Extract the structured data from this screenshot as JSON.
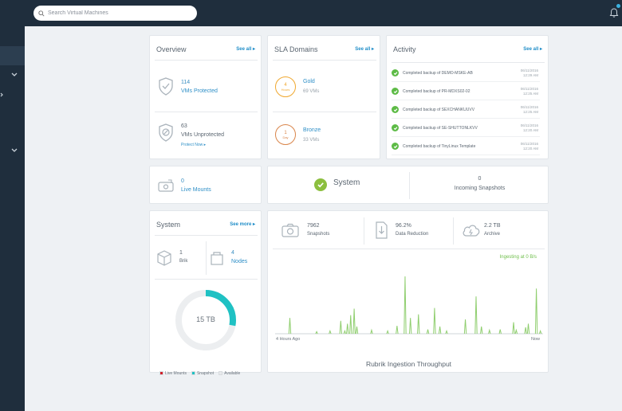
{
  "search": {
    "placeholder": "Search Virtual Machines"
  },
  "overview": {
    "title": "Overview",
    "see_all": "See all",
    "protected_count": "114",
    "protected_label": "VMs Protected",
    "unprotected_count": "63",
    "unprotected_label": "VMs Unprotected",
    "protect_now": "Protect Now"
  },
  "sla": {
    "title": "SLA Domains",
    "see_all": "See all",
    "domains": [
      {
        "badge_num": "4",
        "badge_unit": "Hours",
        "name": "Gold",
        "vms": "69 VMs",
        "color": "#f0a830"
      },
      {
        "badge_num": "1",
        "badge_unit": "Day",
        "name": "Bronze",
        "vms": "33 VMs",
        "color": "#d9854a"
      }
    ]
  },
  "activity": {
    "title": "Activity",
    "see_all": "See all",
    "items": [
      {
        "text": "Completed backup of DEMO-MSKE-AB",
        "date": "06/11/2016",
        "time": "12:29 AM"
      },
      {
        "text": "Completed backup of PR-MDXS02-02",
        "date": "06/11/2016",
        "time": "12:25 AM"
      },
      {
        "text": "Completed backup of SEXCHANKUUVV",
        "date": "06/11/2016",
        "time": "12:25 AM"
      },
      {
        "text": "Completed backup of SE-SHUTTONLKVV",
        "date": "06/11/2016",
        "time": "12:20 AM"
      },
      {
        "text": "Completed backup of TinyLinux Template",
        "date": "06/11/2016",
        "time": "12:20 AM"
      }
    ]
  },
  "live_mounts": {
    "count": "0",
    "label": "Live Mounts"
  },
  "status": {
    "label": "System",
    "incoming_count": "0",
    "incoming_label": "Incoming Snapshots"
  },
  "system": {
    "title": "System",
    "see_more": "See more",
    "brik_count": "1",
    "brik_label": "Brik",
    "nodes_count": "4",
    "nodes_label": "Nodes",
    "capacity": "15 TB",
    "snapshot_fraction": 0.28,
    "legend": [
      {
        "label": "Live Mounts",
        "color": "#d0202a"
      },
      {
        "label": "Snapshot",
        "color": "#1fc1c3"
      },
      {
        "label": "Available",
        "color": "#e8eaec"
      }
    ]
  },
  "stats": {
    "snapshots_value": "7962",
    "snapshots_label": "Snapshots",
    "reduction_value": "96.2%",
    "reduction_label": "Data Reduction",
    "archive_value": "2.2 TB",
    "archive_label": "Archive"
  },
  "throughput": {
    "rate": "Ingesting at 0 B/s",
    "start_label": "4 Hours Ago",
    "end_label": "Now",
    "title": "Rubrik Ingestion Throughput",
    "line_color": "#8fce6e"
  },
  "chart_data": {
    "type": "line",
    "title": "Rubrik Ingestion Throughput",
    "xlabel": "",
    "ylabel": "",
    "x_tick_labels": [
      "4 Hours Ago",
      "Now"
    ],
    "series": [
      {
        "values": [
          0,
          0,
          0,
          0,
          0,
          0,
          0,
          22,
          0,
          0,
          0,
          0,
          0,
          0,
          0,
          0,
          0,
          0,
          0,
          0,
          0,
          0,
          0,
          0,
          0,
          0,
          0,
          0,
          0,
          0,
          0,
          0,
          0,
          0,
          0,
          0,
          3,
          0,
          0,
          0,
          0,
          0,
          0,
          0,
          0,
          0,
          0,
          0,
          0,
          0,
          0,
          0,
          0,
          0,
          0,
          0,
          0,
          0,
          0,
          0,
          0,
          0,
          0,
          0,
          0,
          0,
          0,
          0,
          0,
          0,
          0,
          0,
          0,
          0,
          0,
          0,
          0,
          0,
          0,
          0,
          0,
          0,
          0,
          0,
          0,
          0,
          0,
          0,
          0,
          0,
          0,
          0,
          0,
          0,
          0,
          0,
          0,
          0,
          0,
          0,
          0,
          0,
          0,
          0,
          4,
          0,
          0,
          0,
          0,
          0,
          0,
          0,
          0,
          0,
          0,
          0,
          0,
          0,
          0,
          0,
          0,
          0,
          18,
          0,
          0,
          0,
          4,
          0,
          0,
          14,
          0,
          0,
          0,
          26,
          0,
          0,
          35,
          0,
          0,
          10,
          0,
          0,
          0,
          0,
          0,
          0,
          0,
          0,
          0,
          0,
          0,
          0,
          0,
          0,
          0,
          2,
          0,
          0,
          0,
          0,
          0,
          0,
          0,
          0,
          0,
          0,
          0,
          0,
          0,
          0,
          0,
          0,
          0,
          0,
          0,
          0,
          0,
          0,
          0,
          0,
          0,
          3,
          0,
          0,
          0,
          0,
          0,
          0,
          0,
          0,
          0,
          0,
          0,
          0,
          0,
          0,
          0,
          0,
          0,
          0,
          0,
          0,
          0,
          0,
          0,
          0,
          0,
          0,
          0,
          0,
          0,
          0,
          0,
          0,
          0,
          0,
          4,
          0,
          0,
          0,
          0,
          0,
          0,
          0,
          0,
          0,
          0,
          0,
          0,
          0,
          0,
          0,
          0,
          0,
          0,
          0,
          0,
          0,
          0,
          0,
          0,
          0,
          0,
          0,
          0,
          0,
          0,
          0,
          0,
          0,
          0,
          0,
          0,
          0,
          0,
          0,
          0,
          0,
          0,
          0,
          0,
          0,
          0,
          0,
          0,
          0,
          0,
          0,
          0,
          0,
          0,
          0,
          0,
          0,
          0,
          0,
          0,
          0,
          0,
          0,
          0,
          0,
          0,
          0,
          0,
          0,
          0,
          0,
          0,
          0,
          0,
          0,
          0,
          0,
          0,
          0,
          0,
          0,
          0,
          0,
          0,
          0,
          0,
          0,
          0,
          0,
          0,
          0,
          0,
          0,
          0,
          0,
          0,
          0,
          0,
          0,
          0,
          0,
          0,
          0,
          0,
          0,
          0,
          0,
          0,
          0,
          0,
          0,
          0,
          0,
          0,
          0,
          0,
          0,
          0,
          0,
          0,
          0,
          0,
          0,
          0,
          0,
          0,
          0,
          0,
          0,
          0,
          0,
          0,
          0,
          0,
          0,
          0,
          0,
          0,
          0,
          0,
          0,
          0,
          0,
          0,
          0,
          0,
          0,
          0,
          0,
          0,
          0,
          0,
          0,
          0,
          0,
          0,
          0,
          0,
          0,
          0,
          0,
          0,
          0,
          0,
          0,
          0,
          0,
          0,
          0,
          0,
          0,
          0,
          0,
          0,
          0,
          0,
          0,
          0,
          0,
          0,
          0,
          0,
          0,
          0,
          0,
          0,
          0,
          0,
          0,
          0
        ]
      }
    ],
    "spikes": [
      {
        "x": 0.055,
        "y": 22
      },
      {
        "x": 0.155,
        "y": 3
      },
      {
        "x": 0.205,
        "y": 4
      },
      {
        "x": 0.245,
        "y": 18
      },
      {
        "x": 0.26,
        "y": 4
      },
      {
        "x": 0.27,
        "y": 14
      },
      {
        "x": 0.282,
        "y": 26
      },
      {
        "x": 0.295,
        "y": 35
      },
      {
        "x": 0.305,
        "y": 10
      },
      {
        "x": 0.36,
        "y": 5
      },
      {
        "x": 0.42,
        "y": 4
      },
      {
        "x": 0.455,
        "y": 11
      },
      {
        "x": 0.485,
        "y": 80
      },
      {
        "x": 0.505,
        "y": 22
      },
      {
        "x": 0.535,
        "y": 27
      },
      {
        "x": 0.57,
        "y": 6
      },
      {
        "x": 0.595,
        "y": 36
      },
      {
        "x": 0.615,
        "y": 10
      },
      {
        "x": 0.64,
        "y": 4
      },
      {
        "x": 0.71,
        "y": 20
      },
      {
        "x": 0.75,
        "y": 52
      },
      {
        "x": 0.77,
        "y": 10
      },
      {
        "x": 0.8,
        "y": 5
      },
      {
        "x": 0.84,
        "y": 6
      },
      {
        "x": 0.89,
        "y": 16
      },
      {
        "x": 0.9,
        "y": 5
      },
      {
        "x": 0.935,
        "y": 9
      },
      {
        "x": 0.945,
        "y": 14
      },
      {
        "x": 0.975,
        "y": 63
      },
      {
        "x": 0.99,
        "y": 4
      }
    ],
    "ylim": [
      0,
      100
    ],
    "grid": false
  }
}
